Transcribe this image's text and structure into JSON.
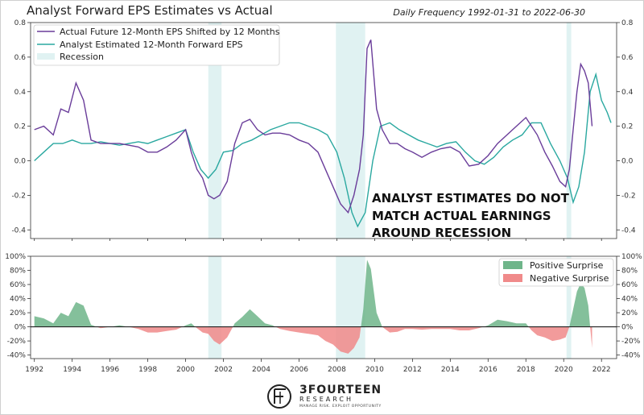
{
  "header": {
    "title": "Analyst Forward EPS Estimates vs Actual",
    "subtitle": "Daily Frequency 1992-01-31 to 2022-06-30"
  },
  "annotation": {
    "line1": "ANALYST ESTIMATES DO NOT",
    "line2": "MATCH ACTUAL EARNINGS",
    "line3": "AROUND RECESSION"
  },
  "branding": {
    "name": "3FOURTEEN",
    "name2": "RESEARCH",
    "tagline": "MANAGE RISK. EXPLOIT OPPORTUNITY"
  },
  "colors": {
    "actual": "#6a3d9a",
    "estimate": "#2aa8a0",
    "recession": "#e0f2f2",
    "positive": "#6fb58a",
    "negative": "#f08a8a"
  },
  "chart_data": [
    {
      "type": "line",
      "ylim": [
        -0.45,
        0.8
      ],
      "yticks": [
        -0.4,
        -0.2,
        0.0,
        0.2,
        0.4,
        0.6,
        0.8
      ],
      "ytick_labels": [
        "-0.4",
        "-0.2",
        "0.0",
        "0.2",
        "0.4",
        "0.6",
        "0.8"
      ],
      "xlim": [
        1991.8,
        2022.8
      ],
      "legend_position": "top-left",
      "legend": {
        "actual": "Actual Future 12-Month EPS Shifted by 12 Months",
        "estimate": "Analyst Estimated 12-Month Forward EPS",
        "recession": "Recession"
      },
      "recessions": [
        [
          2001.2,
          2001.9
        ],
        [
          2007.95,
          2009.5
        ],
        [
          2020.15,
          2020.4
        ]
      ],
      "series": [
        {
          "name": "Actual Future 12-Month EPS Shifted by 12 Months",
          "x": [
            1992.0,
            1992.5,
            1993.0,
            1993.4,
            1993.8,
            1994.2,
            1994.6,
            1995.0,
            1995.5,
            1996.0,
            1996.5,
            1997.0,
            1997.5,
            1998.0,
            1998.5,
            1999.0,
            1999.5,
            2000.0,
            2000.3,
            2000.6,
            2000.9,
            2001.2,
            2001.5,
            2001.8,
            2002.2,
            2002.6,
            2003.0,
            2003.4,
            2003.8,
            2004.2,
            2004.6,
            2005.0,
            2005.5,
            2006.0,
            2006.5,
            2007.0,
            2007.4,
            2007.8,
            2008.2,
            2008.6,
            2008.9,
            2009.2,
            2009.4,
            2009.6,
            2009.8,
            2010.1,
            2010.4,
            2010.8,
            2011.2,
            2011.6,
            2012.0,
            2012.5,
            2013.0,
            2013.5,
            2014.0,
            2014.5,
            2015.0,
            2015.5,
            2016.0,
            2016.5,
            2017.0,
            2017.5,
            2018.0,
            2018.3,
            2018.6,
            2019.0,
            2019.4,
            2019.8,
            2020.1,
            2020.3,
            2020.5,
            2020.7,
            2020.9,
            2021.1,
            2021.3,
            2021.5
          ],
          "y": [
            0.18,
            0.2,
            0.15,
            0.3,
            0.28,
            0.45,
            0.35,
            0.12,
            0.1,
            0.1,
            0.1,
            0.09,
            0.08,
            0.05,
            0.05,
            0.08,
            0.12,
            0.18,
            0.05,
            -0.05,
            -0.1,
            -0.2,
            -0.22,
            -0.2,
            -0.12,
            0.1,
            0.22,
            0.24,
            0.18,
            0.15,
            0.16,
            0.16,
            0.15,
            0.12,
            0.1,
            0.05,
            -0.05,
            -0.15,
            -0.25,
            -0.3,
            -0.2,
            -0.05,
            0.15,
            0.65,
            0.7,
            0.3,
            0.18,
            0.1,
            0.1,
            0.07,
            0.05,
            0.02,
            0.05,
            0.07,
            0.08,
            0.05,
            -0.03,
            -0.02,
            0.03,
            0.1,
            0.15,
            0.2,
            0.25,
            0.2,
            0.15,
            0.05,
            -0.03,
            -0.12,
            -0.15,
            -0.05,
            0.18,
            0.4,
            0.56,
            0.52,
            0.45,
            0.2
          ]
        },
        {
          "name": "Analyst Estimated 12-Month Forward EPS",
          "x": [
            1992.0,
            1992.5,
            1993.0,
            1993.5,
            1994.0,
            1994.5,
            1995.0,
            1995.5,
            1996.0,
            1996.5,
            1997.0,
            1997.5,
            1998.0,
            1998.5,
            1999.0,
            1999.5,
            2000.0,
            2000.4,
            2000.8,
            2001.2,
            2001.6,
            2002.0,
            2002.5,
            2003.0,
            2003.5,
            2004.0,
            2004.5,
            2005.0,
            2005.5,
            2006.0,
            2006.5,
            2007.0,
            2007.5,
            2008.0,
            2008.4,
            2008.8,
            2009.1,
            2009.5,
            2009.9,
            2010.3,
            2010.8,
            2011.3,
            2011.8,
            2012.3,
            2012.8,
            2013.3,
            2013.8,
            2014.3,
            2014.8,
            2015.3,
            2015.8,
            2016.3,
            2016.8,
            2017.3,
            2017.8,
            2018.3,
            2018.8,
            2019.3,
            2019.8,
            2020.2,
            2020.5,
            2020.8,
            2021.1,
            2021.4,
            2021.7,
            2022.0,
            2022.3,
            2022.5
          ],
          "y": [
            0.0,
            0.05,
            0.1,
            0.1,
            0.12,
            0.1,
            0.1,
            0.11,
            0.1,
            0.09,
            0.1,
            0.11,
            0.1,
            0.12,
            0.14,
            0.16,
            0.18,
            0.05,
            -0.05,
            -0.1,
            -0.05,
            0.05,
            0.06,
            0.1,
            0.12,
            0.15,
            0.18,
            0.2,
            0.22,
            0.22,
            0.2,
            0.18,
            0.15,
            0.05,
            -0.1,
            -0.3,
            -0.38,
            -0.3,
            0.0,
            0.2,
            0.22,
            0.18,
            0.15,
            0.12,
            0.1,
            0.08,
            0.1,
            0.11,
            0.05,
            0.0,
            -0.02,
            0.02,
            0.08,
            0.12,
            0.15,
            0.22,
            0.22,
            0.1,
            0.0,
            -0.1,
            -0.24,
            -0.15,
            0.05,
            0.4,
            0.5,
            0.35,
            0.28,
            0.22
          ]
        }
      ]
    },
    {
      "type": "area",
      "ylim": [
        -0.45,
        1.0
      ],
      "yticks": [
        -0.4,
        -0.2,
        0.0,
        0.2,
        0.4,
        0.6,
        0.8,
        1.0
      ],
      "ytick_labels": [
        "-40%",
        "-20%",
        "0%",
        "20%",
        "40%",
        "60%",
        "80%",
        "100%"
      ],
      "xlim": [
        1991.8,
        2022.8
      ],
      "xticks": [
        1992,
        1994,
        1996,
        1998,
        2000,
        2002,
        2004,
        2006,
        2008,
        2010,
        2012,
        2014,
        2016,
        2018,
        2020,
        2022
      ],
      "xtick_labels": [
        "1992",
        "1994",
        "1996",
        "1998",
        "2000",
        "2002",
        "2004",
        "2006",
        "2008",
        "2010",
        "2012",
        "2014",
        "2016",
        "2018",
        "2020",
        "2022"
      ],
      "legend_position": "top-right",
      "legend": {
        "positive": "Positive Surprise",
        "negative": "Negative Surprise"
      },
      "recessions": [
        [
          2001.2,
          2001.9
        ],
        [
          2007.95,
          2009.5
        ],
        [
          2020.15,
          2020.4
        ]
      ],
      "series": [
        {
          "name": "Surprise",
          "x": [
            1992.0,
            1992.5,
            1993.0,
            1993.4,
            1993.8,
            1994.2,
            1994.6,
            1995.0,
            1995.5,
            1996.0,
            1996.5,
            1997.0,
            1997.5,
            1998.0,
            1998.5,
            1999.0,
            1999.5,
            2000.0,
            2000.3,
            2000.6,
            2000.9,
            2001.2,
            2001.5,
            2001.8,
            2002.2,
            2002.6,
            2003.0,
            2003.4,
            2003.8,
            2004.2,
            2004.6,
            2005.0,
            2005.5,
            2006.0,
            2006.5,
            2007.0,
            2007.4,
            2007.8,
            2008.2,
            2008.6,
            2008.9,
            2009.2,
            2009.4,
            2009.6,
            2009.8,
            2010.1,
            2010.4,
            2010.8,
            2011.2,
            2011.6,
            2012.0,
            2012.5,
            2013.0,
            2013.5,
            2014.0,
            2014.5,
            2015.0,
            2015.5,
            2016.0,
            2016.5,
            2017.0,
            2017.5,
            2018.0,
            2018.3,
            2018.6,
            2019.0,
            2019.4,
            2019.8,
            2020.1,
            2020.3,
            2020.5,
            2020.7,
            2020.9,
            2021.1,
            2021.3,
            2021.5
          ],
          "y": [
            0.15,
            0.12,
            0.05,
            0.2,
            0.15,
            0.35,
            0.3,
            0.03,
            -0.02,
            0.0,
            0.02,
            0.0,
            -0.03,
            -0.08,
            -0.08,
            -0.06,
            -0.04,
            0.02,
            0.05,
            -0.02,
            -0.08,
            -0.1,
            -0.2,
            -0.25,
            -0.15,
            0.05,
            0.14,
            0.25,
            0.15,
            0.05,
            0.02,
            -0.03,
            -0.06,
            -0.08,
            -0.1,
            -0.12,
            -0.2,
            -0.25,
            -0.35,
            -0.38,
            -0.3,
            -0.15,
            0.25,
            0.95,
            0.82,
            0.2,
            0.0,
            -0.08,
            -0.07,
            -0.03,
            -0.03,
            -0.04,
            -0.03,
            -0.03,
            -0.03,
            -0.05,
            -0.05,
            -0.02,
            0.02,
            0.1,
            0.08,
            0.05,
            0.05,
            -0.05,
            -0.12,
            -0.15,
            -0.2,
            -0.18,
            -0.15,
            0.0,
            0.25,
            0.5,
            0.62,
            0.55,
            0.3,
            -0.3
          ]
        }
      ]
    }
  ]
}
